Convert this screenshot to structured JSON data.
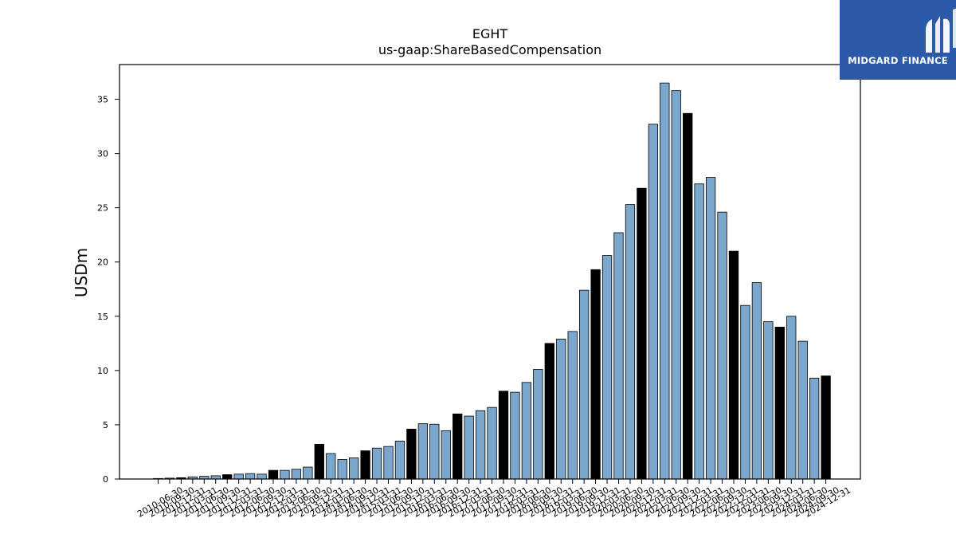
{
  "logo": {
    "text": "MIDGARD FINANCE",
    "icon": "midgard-m-logo-icon",
    "background": "#2c5aa8"
  },
  "colors": {
    "q4_bar": "#000000",
    "other_bar": "#7ba7cc",
    "edge": "#000000"
  },
  "chart_data": {
    "type": "bar",
    "title": "EGHT",
    "subtitle": "us-gaap:ShareBasedCompensation",
    "xlabel": "",
    "ylabel": "USDm",
    "ylim": [
      0,
      38.2
    ],
    "yticks": [
      0,
      5,
      10,
      15,
      20,
      25,
      30,
      35
    ],
    "grid": false,
    "categories": [
      "2010-06-30",
      "2010-09-30",
      "2010-12-31",
      "2011-03-31",
      "2011-06-30",
      "2011-09-30",
      "2011-12-31",
      "2012-03-31",
      "2012-06-30",
      "2012-09-30",
      "2012-12-31",
      "2013-03-31",
      "2013-06-30",
      "2013-09-30",
      "2013-12-31",
      "2014-03-31",
      "2014-06-30",
      "2014-09-30",
      "2014-12-31",
      "2015-03-31",
      "2015-06-30",
      "2015-09-30",
      "2015-12-31",
      "2016-03-31",
      "2016-06-30",
      "2016-09-30",
      "2016-12-31",
      "2017-03-31",
      "2017-06-30",
      "2017-09-30",
      "2017-12-31",
      "2018-03-31",
      "2018-06-30",
      "2018-09-30",
      "2018-12-31",
      "2019-03-31",
      "2019-06-30",
      "2019-09-30",
      "2019-12-31",
      "2020-03-31",
      "2020-06-30",
      "2020-09-30",
      "2020-12-31",
      "2021-03-31",
      "2021-06-30",
      "2021-09-30",
      "2021-12-31",
      "2022-03-31",
      "2022-06-30",
      "2022-09-30",
      "2022-12-31",
      "2023-03-31",
      "2023-06-30",
      "2023-09-30",
      "2023-12-31",
      "2024-03-31",
      "2024-06-30",
      "2024-09-30",
      "2024-12-31"
    ],
    "values": [
      0.05,
      0.08,
      0.12,
      0.2,
      0.25,
      0.3,
      0.4,
      0.45,
      0.5,
      0.45,
      0.8,
      0.8,
      0.9,
      1.1,
      3.2,
      2.35,
      1.8,
      1.95,
      2.6,
      2.85,
      3.0,
      3.5,
      4.6,
      5.1,
      5.05,
      4.45,
      6.0,
      5.8,
      6.3,
      6.6,
      8.1,
      8.0,
      8.9,
      10.1,
      12.5,
      12.9,
      13.6,
      17.4,
      19.3,
      20.6,
      22.7,
      25.3,
      26.8,
      32.7,
      36.5,
      35.8,
      33.7,
      27.2,
      27.8,
      24.6,
      21.0,
      16.0,
      18.1,
      14.5,
      14.0,
      15.0,
      12.7,
      9.3,
      9.5
    ],
    "highlight": "December 31 (fiscal Q4) bars drawn in black"
  }
}
